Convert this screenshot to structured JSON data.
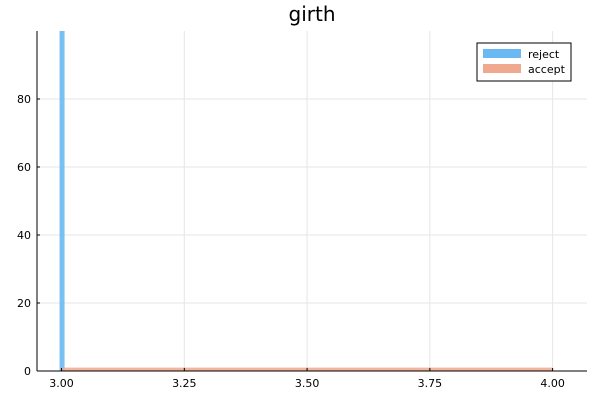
{
  "chart_data": {
    "type": "bar",
    "title": "girth",
    "xlabel": "",
    "ylabel": "",
    "xlim": [
      2.95,
      4.07
    ],
    "ylim": [
      0,
      100
    ],
    "xticks": [
      3.0,
      3.25,
      3.5,
      3.75,
      4.0
    ],
    "xtick_labels": [
      "3.00",
      "3.25",
      "3.50",
      "3.75",
      "4.00"
    ],
    "yticks": [
      0,
      20,
      40,
      60,
      80
    ],
    "ytick_labels": [
      "0",
      "20",
      "40",
      "60",
      "80"
    ],
    "grid": true,
    "legend_position": "top-right",
    "series": [
      {
        "name": "reject",
        "color": "#6ab9f2",
        "bins": [
          {
            "x0": 3.0,
            "x1": 3.01,
            "value": 100
          }
        ]
      },
      {
        "name": "accept",
        "color": "#f0a88e",
        "bins": [
          {
            "x0": 3.0,
            "x1": 4.0,
            "value": 1
          }
        ]
      }
    ]
  }
}
